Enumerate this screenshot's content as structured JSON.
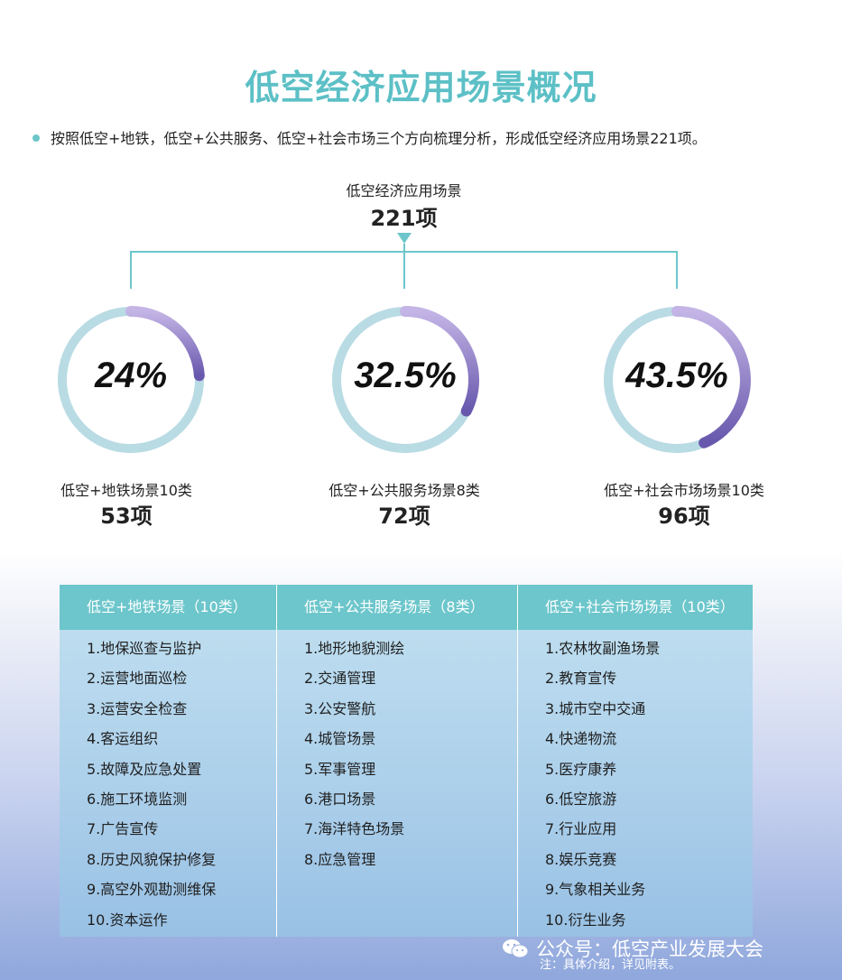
{
  "title": "低空经济应用场景概况",
  "intro": "按照低空+地铁，低空+公共服务、低空+社会市场三个方向梳理分析，形成低空经济应用场景221项。",
  "total": {
    "label": "低空经济应用场景",
    "count": "221项"
  },
  "colors": {
    "title": "#5cc0c6",
    "ring": "#b9dbe4",
    "arc_start": "#c4b5e6",
    "arc_end": "#6858ad",
    "table_head": "#6cc6cb"
  },
  "categories": [
    {
      "pct_text": "24%",
      "pct": 24,
      "label": "低空+地铁场景10类",
      "count": "53项"
    },
    {
      "pct_text": "32.5%",
      "pct": 32.5,
      "label": "低空+公共服务场景8类",
      "count": "72项"
    },
    {
      "pct_text": "43.5%",
      "pct": 43.5,
      "label": "低空+社会市场场景10类",
      "count": "96项"
    }
  ],
  "table": {
    "columns": [
      {
        "header": "低空+地铁场景（10类）",
        "items": [
          "1.地保巡查与监护",
          "2.运营地面巡检",
          "3.运营安全检查",
          "4.客运组织",
          "5.故障及应急处置",
          "6.施工环境监测",
          "7.广告宣传",
          "8.历史风貌保护修复",
          "9.高空外观勘测维保",
          "10.资本运作"
        ]
      },
      {
        "header": "低空+公共服务场景（8类）",
        "items": [
          "1.地形地貌测绘",
          "2.交通管理",
          "3.公安警航",
          "4.城管场景",
          "5.军事管理",
          "6.港口场景",
          "7.海洋特色场景",
          "8.应急管理"
        ]
      },
      {
        "header": "低空+社会市场场景（10类）",
        "items": [
          "1.农林牧副渔场景",
          "2.教育宣传",
          "3.城市空中交通",
          "4.快递物流",
          "5.医疗康养",
          "6.低空旅游",
          "7.行业应用",
          "8.娱乐竞赛",
          "9.气象相关业务",
          "10.衍生业务"
        ]
      }
    ]
  },
  "footer": {
    "brand": "公众号：低空产业发展大会",
    "note": "注：具体介绍，详见附表。",
    "icon": "wechat-icon"
  }
}
